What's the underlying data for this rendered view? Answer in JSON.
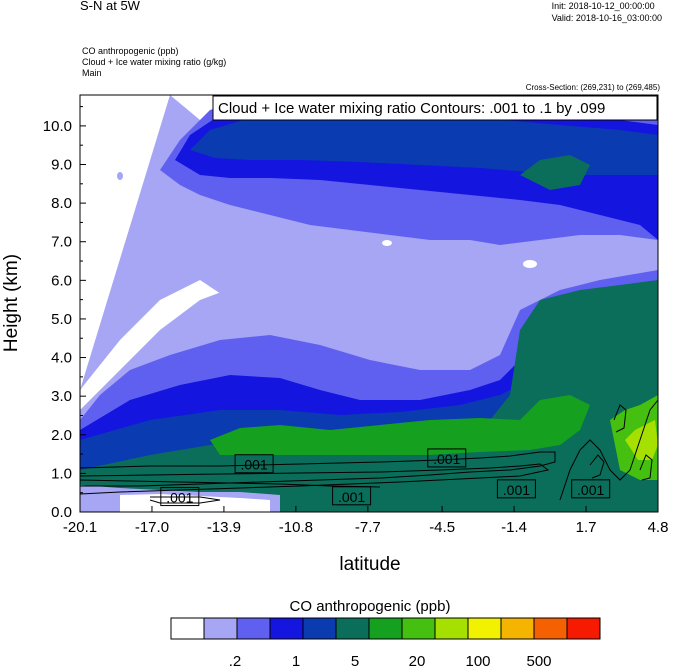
{
  "header": {
    "title": "S-N at 5W",
    "init": "Init: 2018-10-12_00:00:00",
    "valid": "Valid: 2018-10-16_03:00:00",
    "field1": "CO anthropogenic   (ppb)",
    "field2": "Cloud + Ice water mixing ratio   (g/kg)",
    "field3": "Main",
    "cross_section": "Cross-Section: (269,231) to (269,485)"
  },
  "chart_data": {
    "type": "heatmap",
    "xlabel": "latitude",
    "ylabel": "Height (km)",
    "xlim": [
      -20.1,
      4.8
    ],
    "ylim": [
      0.0,
      10.8
    ],
    "xticks": [
      "-20.1",
      "-17.0",
      "-13.9",
      "-10.8",
      "-7.7",
      "-4.5",
      "-1.4",
      "1.7",
      "4.8"
    ],
    "yticks": [
      "0.0",
      "1.0",
      "2.0",
      "3.0",
      "4.0",
      "5.0",
      "6.0",
      "7.0",
      "8.0",
      "9.0",
      "10.0"
    ],
    "contour_title": "Cloud + Ice water mixing ratio Contours: .001 to .1 by .099",
    "contour_levels": [
      0.001,
      0.1
    ],
    "contour_labels": [
      {
        "text": ".001",
        "lat": -12.6,
        "h": 1.25
      },
      {
        "text": ".001",
        "lat": -4.3,
        "h": 1.4
      },
      {
        "text": ".001",
        "lat": -15.8,
        "h": 0.4
      },
      {
        "text": ".001",
        "lat": -8.4,
        "h": 0.42
      },
      {
        "text": ".001",
        "lat": -1.3,
        "h": 0.6
      },
      {
        "text": ".001",
        "lat": 1.9,
        "h": 0.6
      }
    ],
    "colorbar": {
      "title": "CO anthropogenic  (ppb)",
      "colors": [
        "#ffffff",
        "#a6a6f5",
        "#6060f0",
        "#1515e0",
        "#0a3bb0",
        "#0a6e5a",
        "#15a020",
        "#45c010",
        "#a5e000",
        "#f2f200",
        "#f5b400",
        "#f56000",
        "#f51a00"
      ],
      "labels": [
        ".2",
        "1",
        "5",
        "20",
        "100",
        "500"
      ]
    },
    "regions": [
      {
        "level": 1,
        "desc": "light blue, upper troposphere 2.5-10.8 km"
      },
      {
        "level": 3,
        "desc": "blue band ~2.8-9 km"
      },
      {
        "level": 4,
        "desc": "dark blue layer upper"
      },
      {
        "level": 5,
        "desc": "teal boundary layer 0-3 km and east of -2 lat"
      },
      {
        "level": 6,
        "desc": "green near 1.5-2.5 km"
      },
      {
        "level": 7,
        "desc": "light green near 4.8 lat"
      },
      {
        "level": 8,
        "desc": "yellow-green near 4.8 lat 1.5 km"
      }
    ]
  }
}
